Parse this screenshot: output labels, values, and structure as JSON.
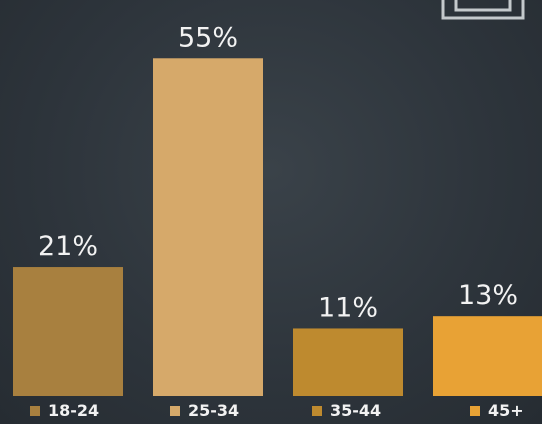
{
  "chart_data": {
    "type": "bar",
    "categories": [
      "18-24",
      "25-34",
      "35-44",
      "45+"
    ],
    "values": [
      21,
      55,
      11,
      13
    ],
    "value_labels": [
      "21%",
      "55%",
      "11%",
      "13%"
    ],
    "unit": "%",
    "title": "",
    "xlabel": "",
    "ylabel": "",
    "ylim": [
      0,
      57
    ],
    "grid": false,
    "legend": "bottom",
    "colors": [
      "#a8803f",
      "#d6a96a",
      "#be8a2f",
      "#e8a235"
    ],
    "background": "#2e353b"
  },
  "decor": {
    "monitor_icon": "monitor-icon",
    "monitor_color": "#c4c9cc"
  }
}
